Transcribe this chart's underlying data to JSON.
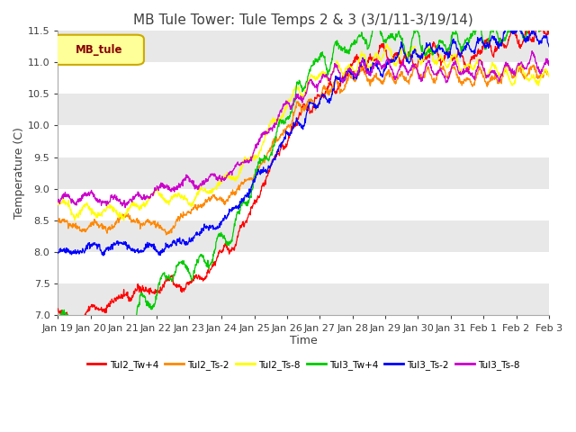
{
  "title": "MB Tule Tower: Tule Temps 2 & 3 (3/1/11-3/19/14)",
  "xlabel": "Time",
  "ylabel": "Temperature (C)",
  "ylim": [
    7.0,
    11.5
  ],
  "xlim_days": 15,
  "x_tick_labels": [
    "Jan 19",
    "Jan 20",
    "Jan 21",
    "Jan 22",
    "Jan 23",
    "Jan 24",
    "Jan 25",
    "Jan 26",
    "Jan 27",
    "Jan 28",
    "Jan 29",
    "Jan 30",
    "Jan 31",
    "Feb 1",
    "Feb 2",
    "Feb 3"
  ],
  "legend_label": "MB_tule",
  "series_labels": [
    "Tul2_Tw+4",
    "Tul2_Ts-2",
    "Tul2_Ts-8",
    "Tul3_Tw+4",
    "Tul3_Ts-2",
    "Tul3_Ts-8"
  ],
  "series_colors": [
    "#ff0000",
    "#ff8800",
    "#ffff00",
    "#00cc00",
    "#0000ff",
    "#cc00cc"
  ],
  "background_color": "#ffffff",
  "band_color": "#e8e8e8",
  "title_fontsize": 11,
  "axis_fontsize": 9,
  "tick_fontsize": 8,
  "legend_box_facecolor": "#ffff99",
  "legend_box_edgecolor": "#ccaa00",
  "legend_text_color": "#880000"
}
